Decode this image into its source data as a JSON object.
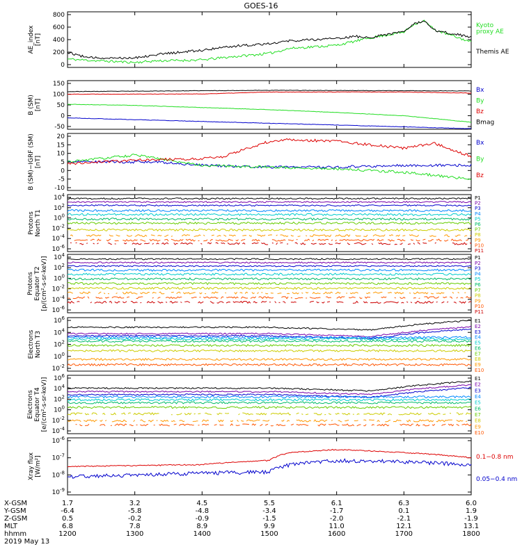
{
  "title": "GOES-16",
  "colors": {
    "black": "#000000",
    "green": "#22dd22",
    "red": "#dd0000",
    "blue": "#0000cc",
    "ramp": [
      "#000000",
      "#7700aa",
      "#0000cc",
      "#0088ff",
      "#00cccc",
      "#00bb66",
      "#66cc00",
      "#cccc00",
      "#ff9900",
      "#ff5500",
      "#cc0000"
    ]
  },
  "panels": [
    {
      "id": "ae",
      "ylabel": [
        "AE_index",
        "[nT]"
      ],
      "ticks": [
        "800",
        "600",
        "400",
        "200",
        "0"
      ],
      "legend": [
        {
          "text": "Kyoto",
          "color": "green"
        },
        {
          "text": "proxy AE",
          "color": "green"
        },
        {
          "text": "Themis AE",
          "color": "black"
        }
      ]
    },
    {
      "id": "bsm",
      "ylabel": [
        "B (SM)",
        "[nT]"
      ],
      "ticks": [
        "150",
        "100",
        "50",
        "0",
        "-50"
      ],
      "legend": [
        {
          "text": "Bx",
          "color": "blue"
        },
        {
          "text": "By",
          "color": "green"
        },
        {
          "text": "Bz",
          "color": "red"
        },
        {
          "text": "Bmag",
          "color": "black"
        }
      ]
    },
    {
      "id": "bdiff",
      "ylabel": [
        "B (SM)−IGRF (SM)",
        "[nT]"
      ],
      "ticks": [
        "20",
        "15",
        "10",
        "5",
        "0",
        "-5",
        "-10"
      ],
      "legend": [
        {
          "text": "Bx",
          "color": "blue"
        },
        {
          "text": "By",
          "color": "green"
        },
        {
          "text": "Bz",
          "color": "red"
        }
      ]
    },
    {
      "id": "pnt1",
      "ylabel": [
        "Protons",
        "North T1"
      ],
      "ticks": [
        "10^4",
        "10^2",
        "10^0",
        "10^-2",
        "10^-4",
        "10^-6"
      ],
      "legend": [
        "P1",
        "P2",
        "P3",
        "P4",
        "P5",
        "P6",
        "P7",
        "P8",
        "P9",
        "P10",
        "P11"
      ]
    },
    {
      "id": "pet2",
      "ylabel": [
        "Protons",
        "Equator T2",
        "[p/(cm²-s-sr-keV)]"
      ],
      "ticks": [
        "10^4",
        "10^2",
        "10^0",
        "10^-2",
        "10^-4",
        "10^-6"
      ],
      "legend": [
        "P1",
        "P2",
        "P3",
        "P4",
        "P5",
        "P6",
        "P7",
        "P8",
        "P9",
        "P10",
        "P11"
      ]
    },
    {
      "id": "ent3",
      "ylabel": [
        "Electrons",
        "North T3"
      ],
      "ticks": [
        "10^6",
        "10^4",
        "10^2",
        "10^0",
        "10^-2"
      ],
      "legend": [
        "E1",
        "E2",
        "E3",
        "E4",
        "E5",
        "E6",
        "E7",
        "E8",
        "E9",
        "E10"
      ]
    },
    {
      "id": "eet4",
      "ylabel": [
        "Electrons",
        "Equator T4",
        "[e/(cm²-s-sr-keV)]"
      ],
      "ticks": [
        "10^6",
        "10^4",
        "10^2",
        "10^0",
        "10^-2",
        "10^-4"
      ],
      "legend": [
        "E1",
        "E2",
        "E3",
        "E4",
        "E5",
        "E6",
        "E7",
        "E8",
        "E9",
        "E10"
      ]
    },
    {
      "id": "xray",
      "ylabel": [
        "Xray flux",
        "[W/m²]"
      ],
      "ticks": [
        "10^-6",
        "10^-7",
        "10^-8",
        "10^-9"
      ],
      "legend": [
        {
          "text": "0.1−0.8 nm",
          "color": "red"
        },
        {
          "text": "0.05−0.4 nm",
          "color": "blue"
        }
      ]
    }
  ],
  "footer": {
    "row_labels": [
      "X-GSM",
      "Y-GSM",
      "Z-GSM",
      "MLT",
      "hhmm"
    ],
    "date": "2019 May 13",
    "columns": [
      [
        "1.7",
        "-6.4",
        "0.5",
        "6.8",
        "1200"
      ],
      [
        "3.2",
        "-5.8",
        "-0.2",
        "7.8",
        "1300"
      ],
      [
        "4.5",
        "-4.8",
        "-0.9",
        "8.9",
        "1400"
      ],
      [
        "5.5",
        "-3.4",
        "-1.5",
        "9.9",
        "1500"
      ],
      [
        "6.1",
        "-1.7",
        "-2.0",
        "11.0",
        "1600"
      ],
      [
        "6.3",
        "0.1",
        "-2.1",
        "12.1",
        "1700"
      ],
      [
        "6.0",
        "1.9",
        "-1.9",
        "13.1",
        "1800"
      ]
    ]
  },
  "chart_data": {
    "type": "line",
    "title": "GOES-16",
    "x_label": "hhmm",
    "x_range": [
      "1200",
      "1800"
    ],
    "panels": [
      {
        "ylabel": "AE_index [nT]",
        "ylim": [
          0,
          800
        ],
        "series": [
          {
            "name": "Kyoto proxy AE",
            "x": [
              1200,
              1230,
              1300,
              1330,
              1400,
              1430,
              1500,
              1530,
              1600,
              1630,
              1645,
              1700,
              1715,
              1730,
              1745,
              1800
            ],
            "values": [
              90,
              70,
              35,
              60,
              75,
              110,
              180,
              260,
              310,
              380,
              420,
              520,
              650,
              700,
              560,
              360
            ]
          },
          {
            "name": "Themis AE",
            "x": [
              1200,
              1230,
              1300,
              1330,
              1400,
              1430,
              1500,
              1530,
              1600,
              1630,
              1645,
              1700,
              1715,
              1730,
              1745,
              1800
            ],
            "values": [
              200,
              110,
              110,
              160,
              230,
              280,
              340,
              380,
              420,
              450,
              430,
              530,
              650,
              690,
              550,
              440
            ]
          }
        ]
      },
      {
        "ylabel": "B (SM) [nT]",
        "ylim": [
          -60,
          150
        ],
        "series": [
          {
            "name": "Bx",
            "x": [
              1200,
              1800
            ],
            "values": [
              -10,
              -60
            ]
          },
          {
            "name": "By",
            "x": [
              1200,
              1300,
              1400,
              1500,
              1600,
              1700,
              1800
            ],
            "values": [
              53,
              48,
              38,
              28,
              15,
              0,
              -30
            ]
          },
          {
            "name": "Bz",
            "x": [
              1200,
              1400,
              1500,
              1600,
              1700,
              1800
            ],
            "values": [
              100,
              101,
              110,
              110,
              110,
              105
            ]
          },
          {
            "name": "Bmag",
            "x": [
              1200,
              1500,
              1800
            ],
            "values": [
              112,
              118,
              115
            ]
          }
        ]
      },
      {
        "ylabel": "B (SM)-IGRF (SM) [nT]",
        "ylim": [
          -10,
          20
        ],
        "series": [
          {
            "name": "Bx",
            "x": [
              1200,
              1330,
              1400,
              1500,
              1600,
              1700,
              1800
            ],
            "values": [
              5,
              5,
              3,
              2,
              2,
              3,
              3
            ]
          },
          {
            "name": "By",
            "x": [
              1200,
              1300,
              1400,
              1500,
              1600,
              1700,
              1800
            ],
            "values": [
              5,
              9,
              3,
              2,
              1,
              -1,
              -5
            ]
          },
          {
            "name": "Bz",
            "x": [
              1200,
              1300,
              1400,
              1430,
              1500,
              1530,
              1600,
              1700,
              1745,
              1800
            ],
            "values": [
              4,
              6,
              7,
              8,
              17,
              18,
              17,
              13,
              16,
              8
            ]
          }
        ]
      },
      {
        "ylabel": "Protons North T1",
        "scale": "log",
        "ylim": [
          "10^-7",
          "10^4"
        ],
        "series_names": [
          "P1",
          "P2",
          "P3",
          "P4",
          "P5",
          "P6",
          "P7",
          "P8",
          "P9",
          "P10",
          "P11"
        ]
      },
      {
        "ylabel": "Protons Equator T2 [p/(cm2-s-sr-keV)]",
        "scale": "log",
        "ylim": [
          "10^-7",
          "10^4"
        ],
        "series_names": [
          "P1",
          "P2",
          "P3",
          "P4",
          "P5",
          "P6",
          "P7",
          "P8",
          "P9",
          "P10",
          "P11"
        ]
      },
      {
        "ylabel": "Electrons North T3",
        "scale": "log",
        "ylim": [
          "10^-2",
          "10^6"
        ],
        "series_names": [
          "E1",
          "E2",
          "E3",
          "E4",
          "E5",
          "E6",
          "E7",
          "E8",
          "E9",
          "E10"
        ]
      },
      {
        "ylabel": "Electrons Equator T4 [e/(cm2-s-sr-keV)]",
        "scale": "log",
        "ylim": [
          "10^-4",
          "10^6"
        ],
        "series_names": [
          "E1",
          "E2",
          "E3",
          "E4",
          "E5",
          "E6",
          "E7",
          "E8",
          "E9",
          "E10"
        ]
      },
      {
        "ylabel": "Xray flux [W/m2]",
        "scale": "log",
        "ylim": [
          "10^-9",
          "10^-6"
        ],
        "series": [
          {
            "name": "0.1-0.8 nm",
            "x": [
              1200,
              1300,
              1400,
              1500,
              1530,
              1600,
              1700,
              1800
            ],
            "values": [
              "3e-8",
              "3.5e-8",
              "4e-8",
              "7e-8",
              "2e-7",
              "3e-7",
              "2e-7",
              "1e-7"
            ]
          },
          {
            "name": "0.05-0.4 nm",
            "x": [
              1200,
              1300,
              1400,
              1500,
              1530,
              1600,
              1700,
              1800
            ],
            "values": [
              "8e-9",
              "1e-8",
              "1.3e-8",
              "1.5e-8",
              "4e-8",
              "7e-8",
              "6e-8",
              "4e-8"
            ]
          }
        ]
      }
    ]
  }
}
